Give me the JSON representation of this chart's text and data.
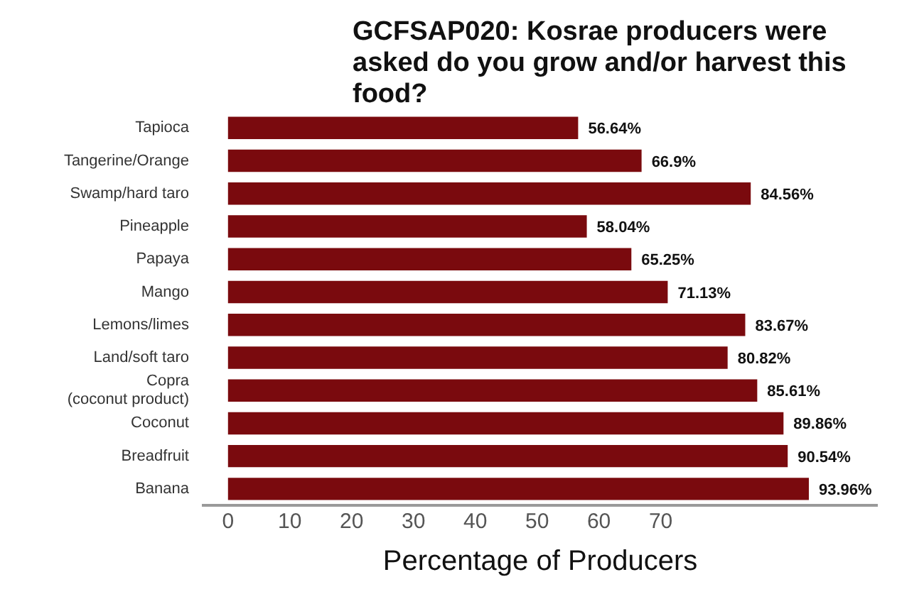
{
  "chart_data": {
    "type": "bar",
    "orientation": "horizontal",
    "title": "GCFSAP020: Kosrae producers were asked do you grow and/or harvest this food?",
    "xlabel": "Percentage of Producers",
    "categories": [
      "Tapioca",
      "Tangerine/Orange",
      "Swamp/hard taro",
      "Pineapple",
      "Papaya",
      "Mango",
      "Lemons/limes",
      "Land/soft taro",
      "Copra\n(coconut product)",
      "Coconut",
      "Breadfruit",
      "Banana"
    ],
    "values": [
      56.64,
      66.9,
      84.56,
      58.04,
      65.25,
      71.13,
      83.67,
      80.82,
      85.61,
      89.86,
      90.54,
      93.96
    ],
    "value_labels": [
      "56.64%",
      "66.9%",
      "84.56%",
      "58.04%",
      "65.25%",
      "71.13%",
      "83.67%",
      "80.82%",
      "85.61%",
      "89.86%",
      "90.54%",
      "93.96%"
    ],
    "color": "#7a0a0e",
    "xlim": [
      -4,
      105
    ],
    "xticks": [
      0,
      10,
      20,
      30,
      40,
      50,
      60,
      70
    ],
    "grid": false
  }
}
